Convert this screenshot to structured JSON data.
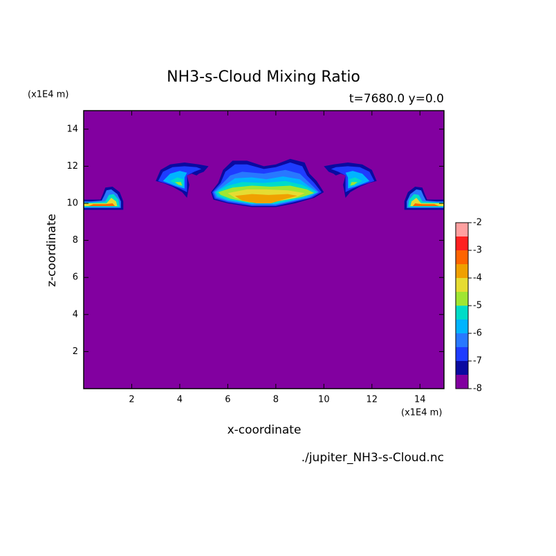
{
  "chart_data": {
    "type": "contour",
    "title": "NH3-s-Cloud Mixing Ratio",
    "subtitle": "t=7680.0 y=0.0",
    "xlabel": "x-coordinate",
    "ylabel": "z-coordinate",
    "x_unit": "(x1E4 m)",
    "y_unit": "(x1E4 m)",
    "source": "./jupiter_NH3-s-Cloud.nc",
    "xlim": [
      0,
      15
    ],
    "ylim": [
      0,
      15
    ],
    "xticks": [
      2,
      4,
      6,
      8,
      10,
      12,
      14
    ],
    "yticks": [
      2,
      4,
      6,
      8,
      10,
      12,
      14
    ],
    "colorbar": {
      "bounds": [
        -8,
        -7.5,
        -7,
        -6.5,
        -6,
        -5.5,
        -5,
        -4.5,
        -4,
        -3.5,
        -3,
        -2.5,
        -2
      ],
      "ticks": [
        -8,
        -7,
        -6,
        -5,
        -4,
        -3,
        -2
      ],
      "colors": [
        "#8200a0",
        "#0a0aa0",
        "#1e3cff",
        "#2878ff",
        "#00b4ff",
        "#00dcc8",
        "#a0e632",
        "#e6dc32",
        "#f0a000",
        "#ff6400",
        "#ff2020",
        "#ffa0a0"
      ]
    },
    "contours": [
      {
        "level": -7.5,
        "x": [
          5.3,
          5.6,
          5.8,
          6.2,
          6.8,
          7.5,
          8.0,
          8.6,
          9.2,
          9.4,
          9.7,
          10.0,
          9.6,
          8.8,
          8.0,
          7.0,
          6.0,
          5.4
        ],
        "y": [
          10.6,
          11.1,
          11.8,
          12.3,
          12.3,
          12.0,
          12.1,
          12.4,
          12.2,
          11.6,
          11.2,
          10.6,
          10.3,
          10.0,
          9.8,
          9.8,
          10.0,
          10.2
        ]
      },
      {
        "level": -7,
        "x": [
          5.35,
          5.7,
          5.9,
          6.3,
          6.8,
          7.5,
          8.0,
          8.6,
          9.1,
          9.3,
          9.6,
          9.9,
          9.5,
          8.7,
          8.0,
          7.0,
          6.0,
          5.45
        ],
        "y": [
          10.6,
          11.1,
          11.7,
          12.1,
          12.1,
          11.85,
          11.95,
          12.2,
          12.0,
          11.5,
          11.1,
          10.6,
          10.3,
          10.05,
          9.85,
          9.85,
          10.05,
          10.25
        ]
      },
      {
        "level": -6.5,
        "x": [
          5.4,
          5.8,
          6.1,
          6.6,
          7.5,
          8.4,
          9.0,
          9.4,
          9.8,
          9.4,
          8.7,
          8.0,
          7.0,
          6.0,
          5.5
        ],
        "y": [
          10.6,
          11.1,
          11.5,
          11.7,
          11.6,
          11.8,
          11.6,
          11.1,
          10.6,
          10.3,
          10.1,
          9.9,
          9.9,
          10.1,
          10.3
        ]
      },
      {
        "level": -6,
        "x": [
          5.45,
          5.9,
          6.3,
          7.0,
          7.6,
          8.3,
          9.0,
          9.4,
          9.75,
          9.3,
          8.6,
          8.0,
          7.0,
          6.0,
          5.55
        ],
        "y": [
          10.6,
          11.0,
          11.35,
          11.4,
          11.3,
          11.45,
          11.3,
          10.9,
          10.6,
          10.3,
          10.1,
          9.95,
          9.95,
          10.15,
          10.35
        ]
      },
      {
        "level": -5.5,
        "x": [
          5.5,
          6.0,
          6.6,
          7.5,
          8.4,
          9.1,
          9.7,
          9.2,
          8.6,
          8.0,
          7.0,
          6.0,
          5.6
        ],
        "y": [
          10.6,
          10.95,
          11.15,
          11.1,
          11.2,
          11.0,
          10.6,
          10.35,
          10.15,
          10.0,
          10.0,
          10.2,
          10.4
        ]
      },
      {
        "level": -5,
        "x": [
          5.6,
          6.2,
          7.0,
          7.8,
          8.6,
          9.3,
          9.6,
          9.1,
          8.5,
          7.8,
          6.9,
          6.1,
          5.7
        ],
        "y": [
          10.6,
          10.85,
          10.95,
          10.9,
          10.95,
          10.75,
          10.55,
          10.35,
          10.2,
          10.05,
          10.05,
          10.25,
          10.45
        ]
      },
      {
        "level": -4.5,
        "x": [
          6.0,
          6.8,
          7.6,
          8.5,
          9.2,
          8.8,
          8.0,
          7.0,
          6.3
        ],
        "y": [
          10.55,
          10.75,
          10.75,
          10.7,
          10.55,
          10.3,
          10.1,
          10.1,
          10.3
        ]
      },
      {
        "level": -4,
        "x": [
          6.3,
          7.0,
          7.7,
          8.5,
          8.9,
          8.3,
          7.8,
          7.2,
          6.6
        ],
        "y": [
          10.4,
          10.5,
          10.45,
          10.5,
          10.4,
          10.2,
          10.0,
          10.0,
          10.15
        ]
      },
      {
        "level": -7.5,
        "x": [
          3.0,
          3.2,
          3.6,
          4.2,
          4.8,
          5.2,
          5.0,
          4.8,
          4.7,
          4.5,
          4.3,
          4.4,
          4.3,
          4.1,
          3.7,
          3.3
        ],
        "y": [
          11.2,
          11.8,
          12.1,
          12.2,
          12.1,
          12.0,
          11.7,
          11.6,
          11.5,
          11.6,
          11.5,
          11.0,
          10.3,
          10.6,
          10.9,
          11.1
        ]
      },
      {
        "level": -7,
        "x": [
          3.1,
          3.3,
          3.7,
          4.2,
          4.7,
          4.9,
          4.6,
          4.3,
          4.3,
          4.0,
          3.6
        ],
        "y": [
          11.2,
          11.7,
          11.95,
          12.0,
          11.95,
          11.85,
          11.7,
          11.5,
          10.6,
          10.8,
          11.0
        ]
      },
      {
        "level": -6,
        "x": [
          3.3,
          3.6,
          4.0,
          4.3,
          4.2,
          4.2,
          3.9,
          3.5
        ],
        "y": [
          11.2,
          11.6,
          11.75,
          11.65,
          11.4,
          10.8,
          10.9,
          11.1
        ]
      },
      {
        "level": -5.5,
        "x": [
          3.6,
          3.9,
          4.15,
          4.15,
          3.9
        ],
        "y": [
          11.2,
          11.4,
          11.3,
          10.9,
          11.0
        ]
      },
      {
        "level": -5,
        "x": [
          3.8,
          4.05,
          4.1,
          3.95
        ],
        "y": [
          11.15,
          11.15,
          10.95,
          11.0
        ]
      },
      {
        "level": -7.5,
        "x": [
          12.2,
          12.0,
          11.6,
          11.0,
          10.4,
          10.0,
          10.2,
          10.4,
          10.5,
          10.7,
          10.9,
          10.8,
          10.9,
          11.1,
          11.5,
          11.9
        ],
        "y": [
          11.2,
          11.8,
          12.1,
          12.2,
          12.1,
          12.0,
          11.7,
          11.6,
          11.5,
          11.6,
          11.5,
          11.0,
          10.3,
          10.6,
          10.9,
          11.1
        ]
      },
      {
        "level": -7,
        "x": [
          12.1,
          11.9,
          11.5,
          11.0,
          10.5,
          10.3,
          10.6,
          10.9,
          10.9,
          11.2,
          11.6
        ],
        "y": [
          11.2,
          11.7,
          11.95,
          12.0,
          11.95,
          11.85,
          11.7,
          11.5,
          10.6,
          10.8,
          11.0
        ]
      },
      {
        "level": -6,
        "x": [
          11.9,
          11.6,
          11.2,
          10.9,
          11.0,
          11.0,
          11.3,
          11.7
        ],
        "y": [
          11.2,
          11.6,
          11.75,
          11.65,
          11.4,
          10.8,
          10.9,
          11.1
        ]
      },
      {
        "level": -5.5,
        "x": [
          11.6,
          11.3,
          11.05,
          11.05,
          11.3
        ],
        "y": [
          11.2,
          11.4,
          11.3,
          10.9,
          11.0
        ]
      },
      {
        "level": -5,
        "x": [
          11.4,
          11.15,
          11.1,
          11.25
        ],
        "y": [
          11.15,
          11.15,
          10.95,
          11.0
        ]
      },
      {
        "level": -7.5,
        "x": [
          0,
          1.65,
          1.65,
          1.5,
          1.2,
          0.9,
          0.8,
          0.7,
          0.3,
          0
        ],
        "y": [
          9.65,
          9.65,
          10.1,
          10.6,
          10.9,
          10.85,
          10.5,
          10.2,
          10.2,
          10.2
        ]
      },
      {
        "level": -6.5,
        "x": [
          0,
          1.55,
          1.55,
          1.4,
          1.15,
          0.95,
          0.85,
          0.75,
          0.3,
          0
        ],
        "y": [
          9.75,
          9.75,
          10.1,
          10.5,
          10.75,
          10.7,
          10.4,
          10.15,
          10.1,
          10.1
        ]
      },
      {
        "level": -5.5,
        "x": [
          0,
          1.5,
          1.45,
          1.25,
          1.05,
          0.9,
          0.3,
          0
        ],
        "y": [
          9.8,
          9.8,
          10.2,
          10.5,
          10.45,
          10.1,
          10.05,
          10.05
        ]
      },
      {
        "level": -4.5,
        "x": [
          0,
          1.4,
          1.35,
          1.15,
          0.95,
          0.3,
          0
        ],
        "y": [
          9.85,
          9.85,
          10.1,
          10.3,
          10.0,
          10.0,
          10.0
        ]
      },
      {
        "level": -3.5,
        "x": [
          0.2,
          1.3,
          1.2,
          0.9,
          0.4
        ],
        "y": [
          9.85,
          9.85,
          10.0,
          9.95,
          9.95
        ]
      },
      {
        "level": -7.5,
        "x": [
          15,
          13.35,
          13.35,
          13.5,
          13.8,
          14.1,
          14.2,
          14.3,
          14.7,
          15
        ],
        "y": [
          9.65,
          9.65,
          10.1,
          10.6,
          10.9,
          10.85,
          10.5,
          10.2,
          10.2,
          10.2
        ]
      },
      {
        "level": -6.5,
        "x": [
          15,
          13.45,
          13.45,
          13.6,
          13.85,
          14.05,
          14.15,
          14.25,
          14.7,
          15
        ],
        "y": [
          9.75,
          9.75,
          10.1,
          10.5,
          10.75,
          10.7,
          10.4,
          10.15,
          10.1,
          10.1
        ]
      },
      {
        "level": -5.5,
        "x": [
          15,
          13.5,
          13.55,
          13.75,
          13.95,
          14.1,
          14.7,
          15
        ],
        "y": [
          9.8,
          9.8,
          10.2,
          10.5,
          10.45,
          10.1,
          10.05,
          10.05
        ]
      },
      {
        "level": -4.5,
        "x": [
          15,
          13.6,
          13.65,
          13.85,
          14.05,
          14.7,
          15
        ],
        "y": [
          9.85,
          9.85,
          10.1,
          10.3,
          10.0,
          10.0,
          10.0
        ]
      },
      {
        "level": -3.5,
        "x": [
          14.8,
          13.7,
          13.8,
          14.1,
          14.6
        ],
        "y": [
          9.85,
          9.85,
          10.0,
          9.95,
          9.95
        ]
      }
    ]
  }
}
